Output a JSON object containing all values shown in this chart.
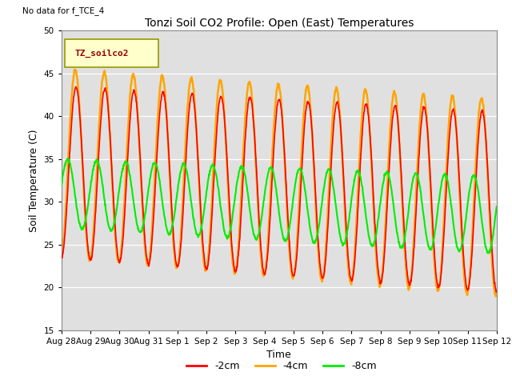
{
  "title": "Tonzi Soil CO2 Profile: Open (East) Temperatures",
  "xlabel": "Time",
  "ylabel": "Soil Temperature (C)",
  "ylim": [
    15,
    50
  ],
  "yticks": [
    15,
    20,
    25,
    30,
    35,
    40,
    45,
    50
  ],
  "background_color": "#e0e0e0",
  "fig_background": "#ffffff",
  "legend_label": "TZ_soilco2",
  "legend_bg": "#ffffcc",
  "legend_border": "#999900",
  "note_text": "No data for f_TCE_4",
  "line_colors": {
    "2cm": "#ff0000",
    "4cm": "#ffa500",
    "8cm": "#00ee00"
  },
  "line_widths": {
    "2cm": 1.2,
    "4cm": 1.8,
    "8cm": 1.5
  },
  "n_days": 15,
  "samples_per_day": 96,
  "xtick_labels": [
    "Aug 28",
    "Aug 29",
    "Aug 30",
    "Aug 31",
    "Sep 1",
    "Sep 2",
    "Sep 3",
    "Sep 4",
    "Sep 5",
    "Sep 6",
    "Sep 7",
    "Sep 8",
    "Sep 9",
    "Sep 10",
    "Sep 11",
    "Sep 12"
  ],
  "xtick_positions": [
    0,
    1,
    2,
    3,
    4,
    5,
    6,
    7,
    8,
    9,
    10,
    11,
    12,
    13,
    14,
    15
  ]
}
